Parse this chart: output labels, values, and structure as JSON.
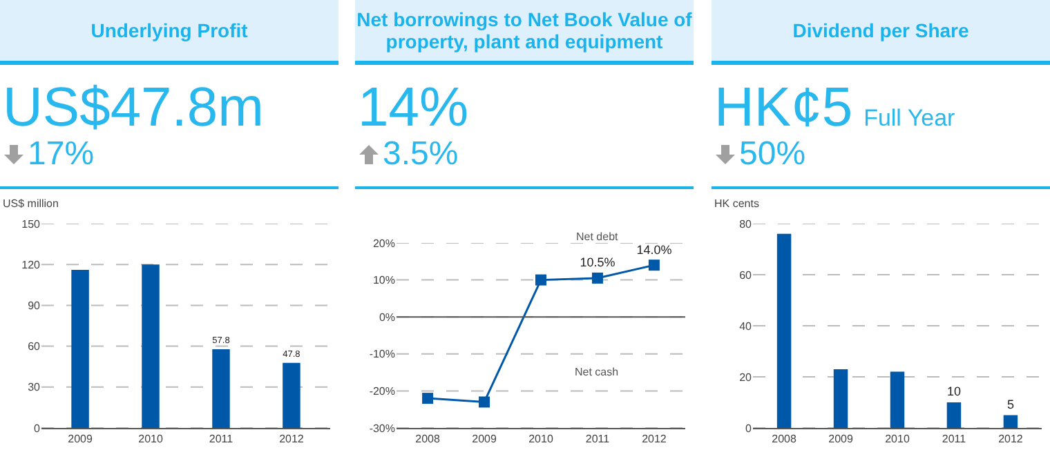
{
  "chart_data": [
    {
      "type": "bar",
      "title": "Underlying Profit",
      "subtitle": "US$47.8m",
      "annotations": [
        "17%"
      ],
      "ylabel": "US$ million",
      "categories": [
        "2009",
        "2010",
        "2011",
        "2012"
      ],
      "values": [
        116,
        120,
        57.8,
        47.8
      ],
      "value_labels": [
        null,
        null,
        "57.8",
        "47.8"
      ],
      "color": "#0058a8",
      "ylim": [
        0,
        150
      ],
      "yticks": [
        0,
        30,
        60,
        90,
        120,
        150
      ],
      "grid": "y"
    },
    {
      "type": "line",
      "title": "Net borrowings to Net Book Value of property, plant and equipment",
      "subtitle": "14%",
      "annotations": [
        "3.5%",
        "Net debt",
        "Net cash"
      ],
      "categories": [
        "2008",
        "2009",
        "2010",
        "2011",
        "2012"
      ],
      "values": [
        -22,
        -23,
        10,
        10.5,
        14.0
      ],
      "value_labels": [
        null,
        null,
        null,
        "10.5%",
        "14.0%"
      ],
      "color": "#0058a8",
      "marker": "square",
      "line_style": "solid",
      "ylim": [
        -30,
        20
      ],
      "yticks": [
        {
          "value": -30,
          "label": "-30%"
        },
        {
          "value": -20,
          "label": "-20%"
        },
        {
          "value": -10,
          "label": "-10%"
        },
        {
          "value": 0,
          "label": "0%"
        },
        {
          "value": 10,
          "label": "10%"
        },
        {
          "value": 20,
          "label": "20%"
        }
      ],
      "ref_lines": [
        {
          "axis": "y",
          "value": 0,
          "color": "#555555"
        }
      ],
      "grid": "y"
    },
    {
      "type": "bar",
      "title": "Dividend per Share",
      "subtitle": "HK¢5",
      "annotations": [
        "50%",
        "Full Year"
      ],
      "ylabel": "HK cents",
      "categories": [
        "2008",
        "2009",
        "2010",
        "2011",
        "2012"
      ],
      "values": [
        76,
        23,
        22,
        10,
        5
      ],
      "value_labels": [
        null,
        null,
        null,
        "10",
        "5"
      ],
      "color": "#0058a8",
      "ylim": [
        0,
        80
      ],
      "yticks": [
        0,
        20,
        40,
        60,
        80
      ],
      "grid": "y"
    }
  ]
}
